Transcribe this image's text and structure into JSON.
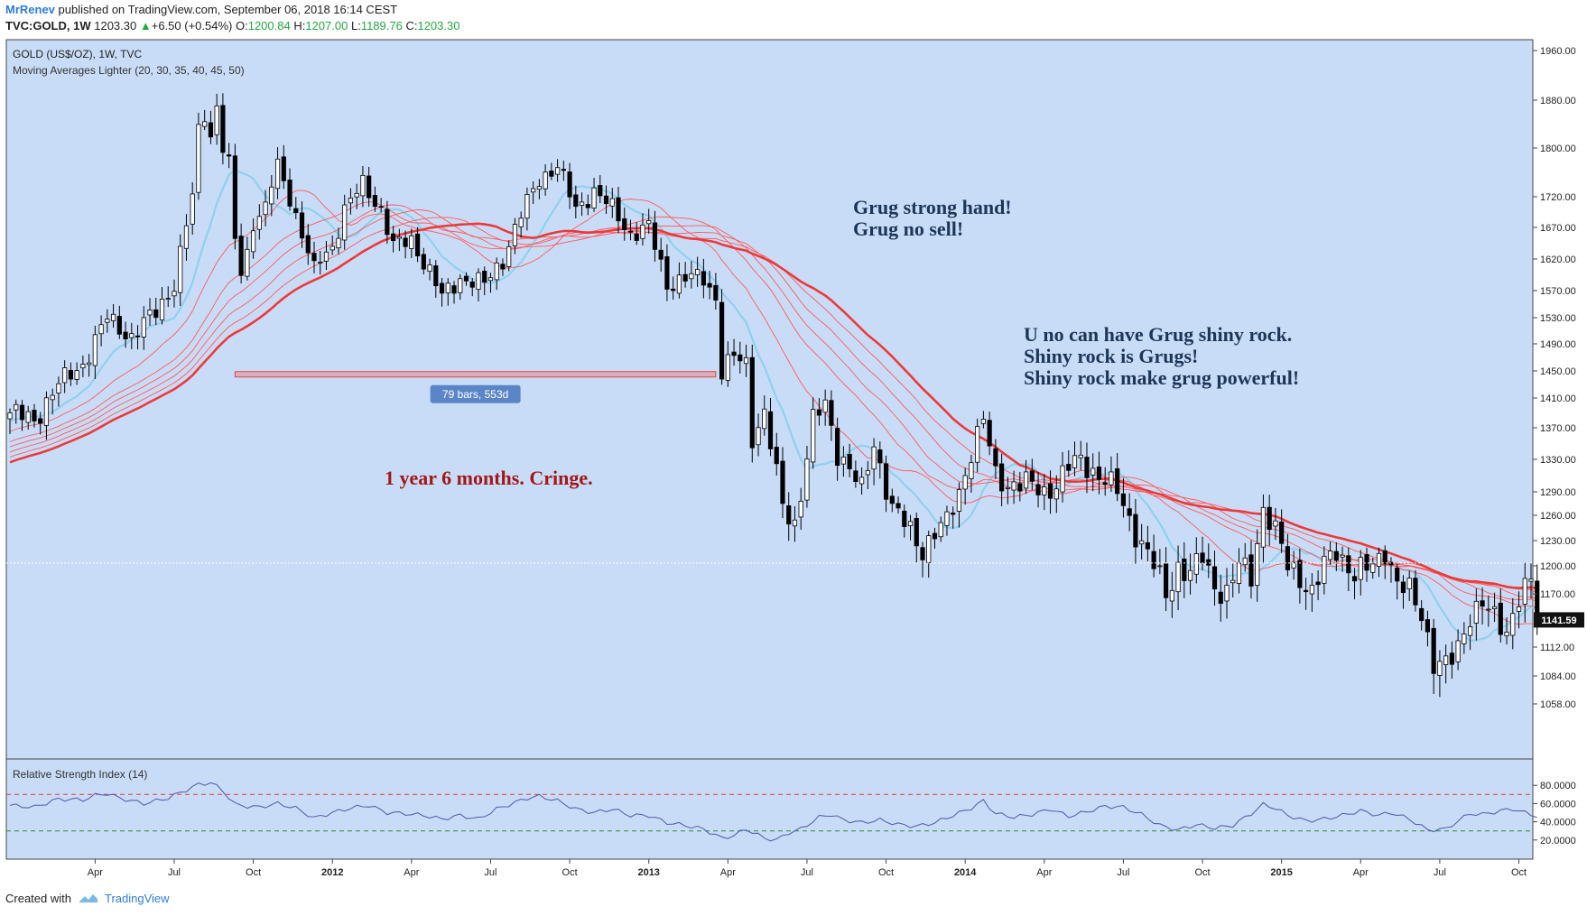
{
  "header": {
    "author": "MrRenev",
    "published_text": "published on TradingView.com, September 06, 2018 16:14 CEST",
    "symbol": "TVC:GOLD, 1W",
    "price": "1203.30",
    "change": "+6.50 (+0.54%)",
    "o_label": "O:",
    "o_value": "1200.84",
    "h_label": "H:",
    "h_value": "1207.00",
    "l_label": "L:",
    "l_value": "1189.76",
    "c_label": "C:",
    "c_value": "1203.30"
  },
  "footer": {
    "created_with": "Created with",
    "brand": "TradingView"
  },
  "colors": {
    "panel_bg": "#c9dcf7",
    "candle_up": "#ffffff",
    "candle_down": "#000000",
    "ma_thin": "#ff5a5a",
    "ma_thick": "#ec3a3a",
    "ma_fast": "#8fd1ee",
    "rsi_line": "#5564b0",
    "rsi_upper": "#e63b3b",
    "rsi_lower": "#2f8a3a",
    "annotation_blue": "#1d3557",
    "annotation_red": "#a01818"
  },
  "chart_data": {
    "type": "candlestick",
    "symbol_title": "GOLD (US$/OZ), 1W, TVC",
    "indicator_title": "Moving Averages Lighter (20, 30, 35, 40, 45, 50)",
    "rsi_title": "Relative Strength Index (14)",
    "y_ticks": [
      1960,
      1880,
      1800,
      1720,
      1670,
      1620,
      1570,
      1530,
      1490,
      1450,
      1410,
      1370,
      1330,
      1290,
      1260,
      1230,
      1200,
      1170,
      1112,
      1084,
      1058
    ],
    "y_tick_labels": [
      "1960.00",
      "1880.00",
      "1800.00",
      "1720.00",
      "1670.00",
      "1620.00",
      "1570.00",
      "1530.00",
      "1490.00",
      "1450.00",
      "1410.00",
      "1370.00",
      "1330.00",
      "1290.00",
      "1260.00",
      "1230.00",
      "1200.00",
      "1170.00",
      "1112.00",
      "1084.00",
      "1058.00"
    ],
    "rsi_ticks": [
      80,
      60,
      40,
      20
    ],
    "rsi_tick_labels": [
      "80.0000",
      "60.0000",
      "40.0000",
      "20.0000"
    ],
    "rsi_levels": [
      70,
      30
    ],
    "x_axis_labels": [
      "Apr",
      "Jul",
      "Oct",
      "2012",
      "Apr",
      "Jul",
      "Oct",
      "2013",
      "Apr",
      "Jul",
      "Oct",
      "2014",
      "Apr",
      "Jul",
      "Oct",
      "2015",
      "Apr",
      "Jul",
      "Oct"
    ],
    "x_axis_weeks": [
      14,
      27,
      40,
      53,
      66,
      79,
      92,
      105,
      118,
      131,
      144,
      157,
      170,
      183,
      196,
      209,
      222,
      235,
      248
    ],
    "current_price": 1141.59,
    "current_price_label": "1141.59",
    "dotted_price_level": 1203.3,
    "measure": {
      "label": "79 bars, 553d",
      "start_week": 37,
      "end_week": 116,
      "price": 1445
    },
    "annotations": [
      {
        "lines": [
          "Grug strong hand!",
          "Grug no sell!"
        ],
        "color": "blue"
      },
      {
        "lines": [
          "U no can have Grug shiny rock.",
          "Shiny rock is Grugs!",
          "Shiny rock make grug powerful!"
        ],
        "color": "blue"
      },
      {
        "lines": [
          "1 year 6 months. Cringe."
        ],
        "color": "red"
      }
    ],
    "weeks": 252,
    "close_anchors": [
      [
        0,
        1390
      ],
      [
        4,
        1380
      ],
      [
        8,
        1430
      ],
      [
        12,
        1460
      ],
      [
        16,
        1530
      ],
      [
        20,
        1500
      ],
      [
        24,
        1540
      ],
      [
        27,
        1580
      ],
      [
        30,
        1720
      ],
      [
        31,
        1830
      ],
      [
        32,
        1860
      ],
      [
        33,
        1820
      ],
      [
        34,
        1870
      ],
      [
        35,
        1800
      ],
      [
        36,
        1770
      ],
      [
        37,
        1650
      ],
      [
        38,
        1600
      ],
      [
        39,
        1630
      ],
      [
        40,
        1680
      ],
      [
        42,
        1700
      ],
      [
        43,
        1740
      ],
      [
        44,
        1770
      ],
      [
        46,
        1720
      ],
      [
        48,
        1660
      ],
      [
        50,
        1600
      ],
      [
        51,
        1620
      ],
      [
        53,
        1640
      ],
      [
        55,
        1700
      ],
      [
        58,
        1740
      ],
      [
        61,
        1700
      ],
      [
        63,
        1640
      ],
      [
        66,
        1650
      ],
      [
        69,
        1600
      ],
      [
        71,
        1560
      ],
      [
        74,
        1590
      ],
      [
        78,
        1580
      ],
      [
        81,
        1620
      ],
      [
        84,
        1690
      ],
      [
        87,
        1750
      ],
      [
        90,
        1770
      ],
      [
        93,
        1700
      ],
      [
        96,
        1730
      ],
      [
        99,
        1700
      ],
      [
        102,
        1660
      ],
      [
        105,
        1670
      ],
      [
        108,
        1580
      ],
      [
        111,
        1590
      ],
      [
        114,
        1590
      ],
      [
        116,
        1560
      ],
      [
        117,
        1450
      ],
      [
        119,
        1470
      ],
      [
        121,
        1460
      ],
      [
        122,
        1360
      ],
      [
        124,
        1390
      ],
      [
        127,
        1270
      ],
      [
        129,
        1250
      ],
      [
        130,
        1290
      ],
      [
        132,
        1380
      ],
      [
        134,
        1400
      ],
      [
        136,
        1340
      ],
      [
        138,
        1320
      ],
      [
        140,
        1290
      ],
      [
        142,
        1350
      ],
      [
        145,
        1270
      ],
      [
        148,
        1240
      ],
      [
        150,
        1220
      ],
      [
        152,
        1240
      ],
      [
        154,
        1250
      ],
      [
        156,
        1290
      ],
      [
        158,
        1340
      ],
      [
        160,
        1380
      ],
      [
        162,
        1310
      ],
      [
        164,
        1300
      ],
      [
        167,
        1300
      ],
      [
        170,
        1290
      ],
      [
        172,
        1300
      ],
      [
        174,
        1320
      ],
      [
        176,
        1330
      ],
      [
        179,
        1310
      ],
      [
        182,
        1290
      ],
      [
        185,
        1240
      ],
      [
        188,
        1200
      ],
      [
        190,
        1170
      ],
      [
        192,
        1200
      ],
      [
        194,
        1190
      ],
      [
        196,
        1210
      ],
      [
        198,
        1180
      ],
      [
        200,
        1170
      ],
      [
        202,
        1200
      ],
      [
        204,
        1190
      ],
      [
        206,
        1270
      ],
      [
        208,
        1240
      ],
      [
        210,
        1200
      ],
      [
        212,
        1190
      ],
      [
        214,
        1170
      ],
      [
        216,
        1200
      ],
      [
        218,
        1220
      ],
      [
        221,
        1190
      ],
      [
        224,
        1200
      ],
      [
        226,
        1220
      ],
      [
        228,
        1180
      ],
      [
        230,
        1170
      ],
      [
        232,
        1150
      ],
      [
        234,
        1100
      ],
      [
        236,
        1090
      ],
      [
        238,
        1110
      ],
      [
        240,
        1150
      ],
      [
        242,
        1160
      ],
      [
        244,
        1140
      ],
      [
        246,
        1130
      ],
      [
        248,
        1170
      ],
      [
        250,
        1180
      ],
      [
        251,
        1142
      ]
    ],
    "rsi_anchors": [
      [
        0,
        58
      ],
      [
        4,
        56
      ],
      [
        8,
        65
      ],
      [
        12,
        64
      ],
      [
        14,
        69
      ],
      [
        16,
        71
      ],
      [
        18,
        66
      ],
      [
        22,
        60
      ],
      [
        26,
        66
      ],
      [
        29,
        75
      ],
      [
        31,
        81
      ],
      [
        33,
        83
      ],
      [
        35,
        74
      ],
      [
        37,
        59
      ],
      [
        39,
        57
      ],
      [
        41,
        56
      ],
      [
        44,
        60
      ],
      [
        47,
        55
      ],
      [
        50,
        44
      ],
      [
        53,
        50
      ],
      [
        56,
        55
      ],
      [
        59,
        58
      ],
      [
        62,
        50
      ],
      [
        65,
        49
      ],
      [
        68,
        47
      ],
      [
        71,
        43
      ],
      [
        74,
        47
      ],
      [
        77,
        43
      ],
      [
        80,
        54
      ],
      [
        83,
        61
      ],
      [
        85,
        66
      ],
      [
        87,
        68
      ],
      [
        90,
        63
      ],
      [
        93,
        54
      ],
      [
        96,
        50
      ],
      [
        99,
        54
      ],
      [
        102,
        47
      ],
      [
        105,
        47
      ],
      [
        108,
        39
      ],
      [
        111,
        36
      ],
      [
        114,
        32
      ],
      [
        117,
        22
      ],
      [
        119,
        25
      ],
      [
        121,
        32
      ],
      [
        124,
        22
      ],
      [
        126,
        20
      ],
      [
        128,
        28
      ],
      [
        130,
        32
      ],
      [
        133,
        45
      ],
      [
        135,
        48
      ],
      [
        137,
        42
      ],
      [
        140,
        39
      ],
      [
        143,
        42
      ],
      [
        146,
        37
      ],
      [
        149,
        35
      ],
      [
        152,
        39
      ],
      [
        155,
        47
      ],
      [
        158,
        55
      ],
      [
        160,
        63
      ],
      [
        162,
        49
      ],
      [
        165,
        45
      ],
      [
        168,
        48
      ],
      [
        171,
        54
      ],
      [
        174,
        46
      ],
      [
        177,
        51
      ],
      [
        180,
        57
      ],
      [
        183,
        56
      ],
      [
        186,
        48
      ],
      [
        189,
        36
      ],
      [
        192,
        31
      ],
      [
        195,
        37
      ],
      [
        198,
        33
      ],
      [
        201,
        36
      ],
      [
        204,
        49
      ],
      [
        206,
        59
      ],
      [
        208,
        55
      ],
      [
        210,
        47
      ],
      [
        213,
        41
      ],
      [
        216,
        43
      ],
      [
        219,
        47
      ],
      [
        222,
        52
      ],
      [
        225,
        47
      ],
      [
        227,
        50
      ],
      [
        230,
        43
      ],
      [
        233,
        31
      ],
      [
        236,
        32
      ],
      [
        238,
        41
      ],
      [
        240,
        49
      ],
      [
        242,
        48
      ],
      [
        245,
        52
      ],
      [
        247,
        54
      ],
      [
        249,
        50
      ],
      [
        251,
        46
      ]
    ]
  }
}
